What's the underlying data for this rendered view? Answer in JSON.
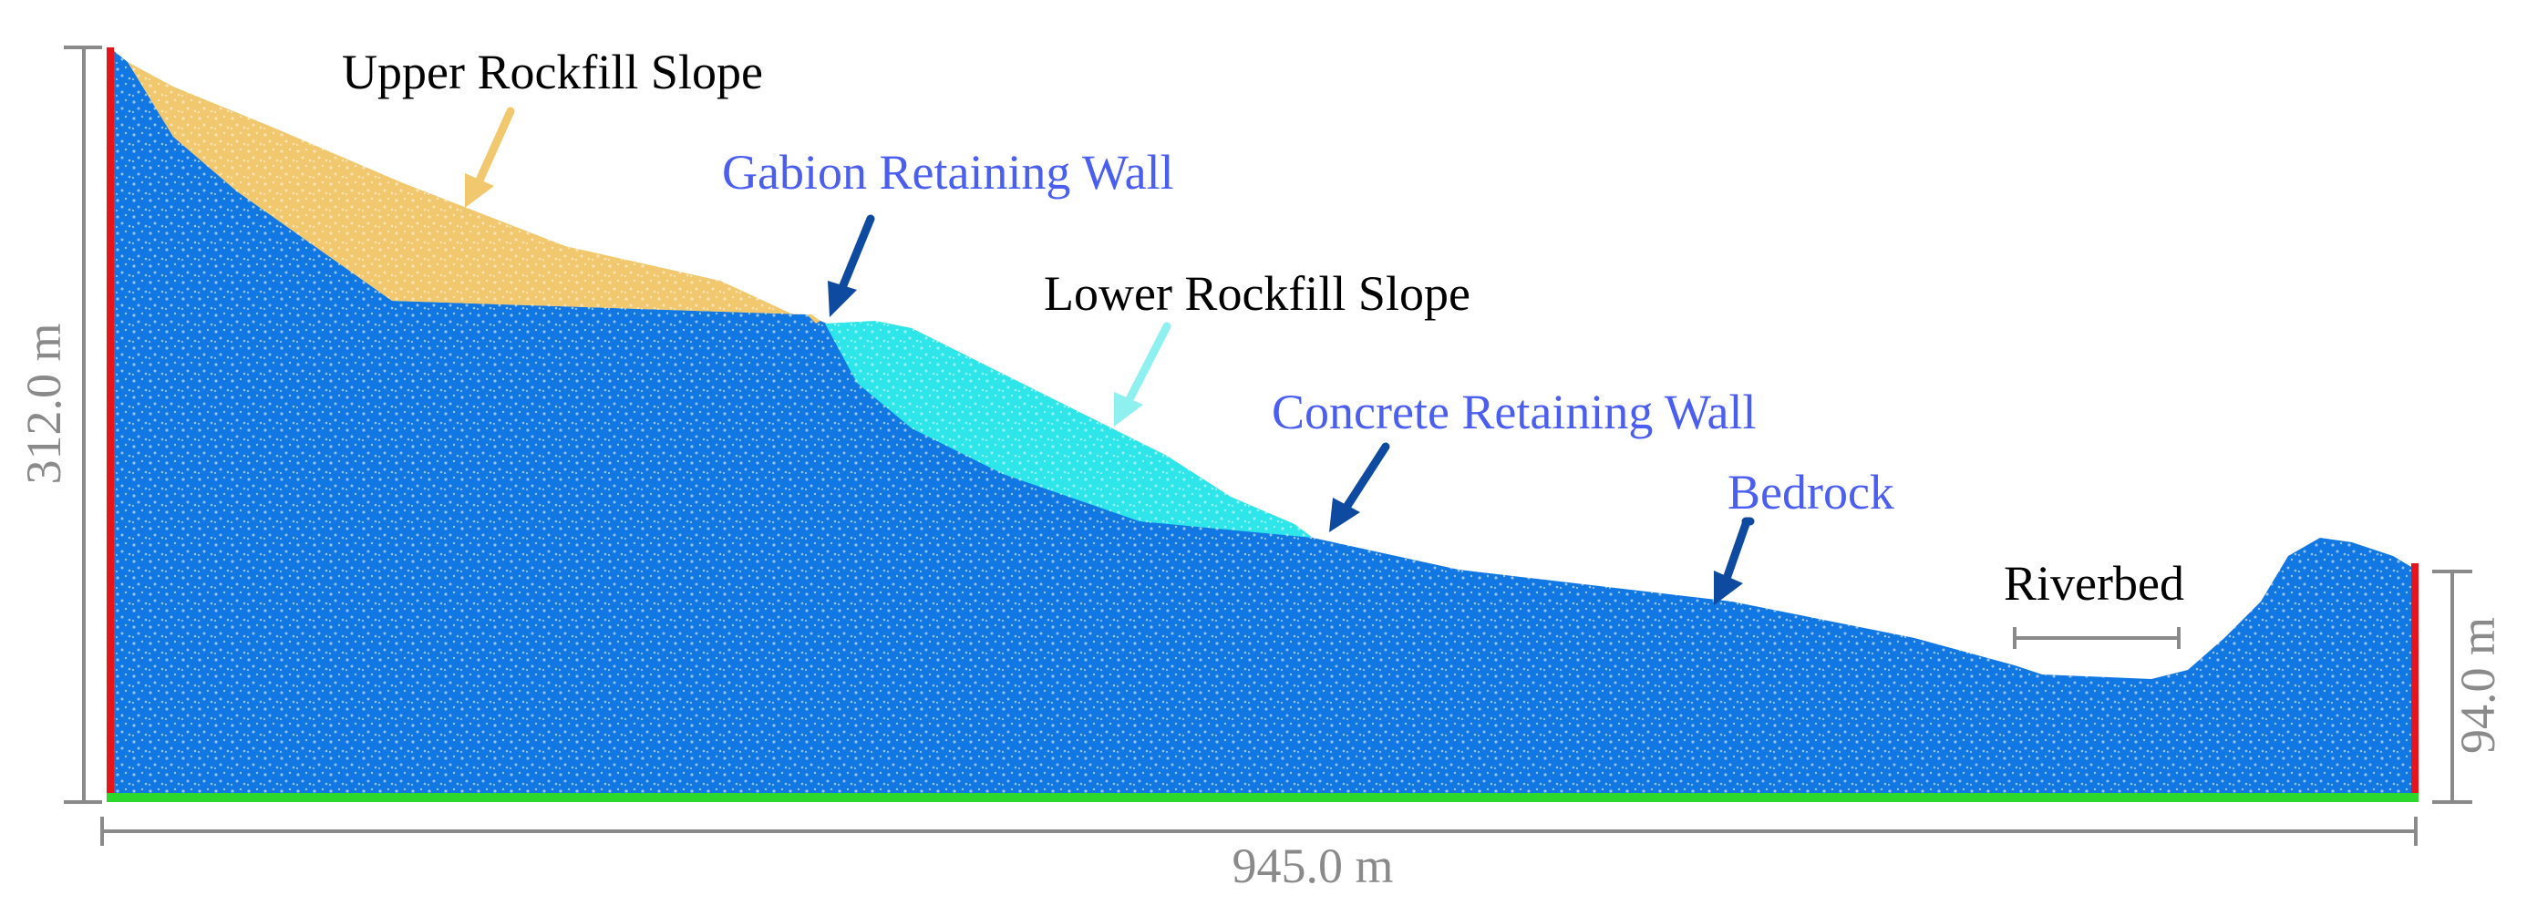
{
  "labels": {
    "upper_rockfill": "Upper Rockfill Slope",
    "gabion_wall": "Gabion Retaining Wall",
    "lower_rockfill": "Lower Rockfill Slope",
    "concrete_wall": "Concrete Retaining Wall",
    "bedrock": "Bedrock",
    "riverbed": "Riverbed"
  },
  "dimensions": {
    "left_height": "312.0 m",
    "right_height": "94.0 m",
    "width": "945.0 m"
  },
  "colors": {
    "bedrock": "#1177e2",
    "upper_rockfill": "#f2c86e",
    "lower_rockfill": "#2ee6ea",
    "fixed_side_boundary": "#e8141c",
    "fixed_bottom_boundary": "#2bd82b",
    "dimension_lines": "#8a8a8a",
    "blue_label_text": "#4a5ef0",
    "black_label_text": "#000000",
    "dark_arrow": "#0d4aa0",
    "upper_rockfill_arrow": "#f2c86e",
    "lower_rockfill_arrow": "#8ff0f0"
  }
}
